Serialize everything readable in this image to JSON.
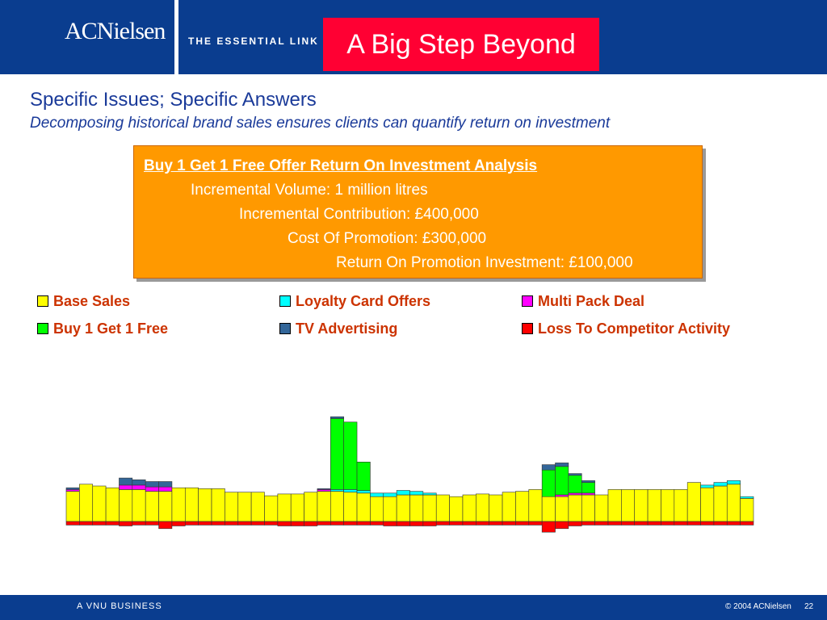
{
  "header": {
    "logo": "ACNielsen",
    "tagline": "THE ESSENTIAL LINK",
    "badge": "A Big Step Beyond"
  },
  "title": "Specific Issues; Specific Answers",
  "subtitle": "Decomposing historical brand sales ensures clients can quantify return on investment",
  "box": {
    "heading": "Buy 1 Get 1 Free Offer Return On Investment Analysis",
    "lines": [
      "Incremental Volume: 1 million litres",
      "Incremental Contribution: £400,000",
      "Cost Of Promotion: £300,000",
      "Return On Promotion Investment: £100,000"
    ]
  },
  "chart_data": {
    "type": "stacked_bar",
    "ylim": [
      -20,
      160
    ],
    "series": [
      {
        "name": "Base Sales",
        "color": "#ffff00",
        "values": [
          34,
          42,
          40,
          38,
          36,
          36,
          34,
          34,
          38,
          38,
          37,
          37,
          33,
          33,
          33,
          29,
          31,
          31,
          33,
          34,
          34,
          33,
          32,
          28,
          28,
          30,
          30,
          30,
          30,
          28,
          30,
          31,
          30,
          33,
          34,
          36,
          28,
          28,
          30,
          30,
          30,
          36,
          36,
          36,
          36,
          36,
          36,
          44,
          38,
          40,
          42,
          26
        ]
      },
      {
        "name": "Loyalty Card Offers",
        "color": "#00ffff",
        "values": [
          0,
          0,
          0,
          0,
          0,
          0,
          0,
          0,
          0,
          0,
          0,
          0,
          0,
          0,
          0,
          0,
          0,
          0,
          0,
          0,
          2,
          3,
          3,
          4,
          4,
          5,
          4,
          2,
          0,
          0,
          0,
          0,
          0,
          0,
          0,
          0,
          0,
          0,
          0,
          0,
          0,
          0,
          0,
          0,
          0,
          0,
          0,
          0,
          3,
          4,
          4,
          2
        ]
      },
      {
        "name": "Multi Pack Deal",
        "color": "#ff00ff",
        "values": [
          2,
          0,
          0,
          0,
          5,
          5,
          5,
          5,
          0,
          0,
          0,
          0,
          0,
          0,
          0,
          0,
          0,
          0,
          0,
          2,
          0,
          0,
          0,
          0,
          0,
          0,
          0,
          0,
          0,
          0,
          0,
          0,
          0,
          0,
          0,
          0,
          0,
          2,
          2,
          2,
          0,
          0,
          0,
          0,
          0,
          0,
          0,
          0,
          0,
          0,
          0,
          0
        ]
      },
      {
        "name": "Buy 1 Get 1 Free",
        "color": "#00ff00",
        "values": [
          0,
          0,
          0,
          0,
          0,
          0,
          0,
          0,
          0,
          0,
          0,
          0,
          0,
          0,
          0,
          0,
          0,
          0,
          0,
          0,
          80,
          76,
          32,
          0,
          0,
          0,
          0,
          0,
          0,
          0,
          0,
          0,
          0,
          0,
          0,
          0,
          30,
          32,
          20,
          12,
          0,
          0,
          0,
          0,
          0,
          0,
          0,
          0,
          0,
          0,
          0,
          0
        ]
      },
      {
        "name": "TV Advertising",
        "color": "#336699",
        "values": [
          2,
          0,
          0,
          0,
          8,
          6,
          6,
          6,
          0,
          0,
          0,
          0,
          0,
          0,
          0,
          0,
          0,
          0,
          0,
          1,
          2,
          0,
          0,
          0,
          0,
          0,
          0,
          0,
          0,
          0,
          0,
          0,
          0,
          0,
          0,
          0,
          6,
          4,
          2,
          2,
          0,
          0,
          0,
          0,
          0,
          0,
          0,
          0,
          0,
          0,
          0,
          0
        ]
      },
      {
        "name": "Loss To Competitor Activity",
        "color": "#ff0000",
        "values": [
          -4,
          -4,
          -4,
          -4,
          -5,
          -4,
          -4,
          -8,
          -5,
          -4,
          -4,
          -4,
          -4,
          -4,
          -4,
          -4,
          -5,
          -5,
          -5,
          -4,
          -4,
          -4,
          -4,
          -4,
          -5,
          -5,
          -5,
          -5,
          -4,
          -4,
          -4,
          -4,
          -4,
          -4,
          -4,
          -4,
          -12,
          -8,
          -5,
          -4,
          -4,
          -4,
          -4,
          -4,
          -4,
          -4,
          -4,
          -4,
          -4,
          -4,
          -4,
          -4
        ]
      }
    ]
  },
  "footer": {
    "left": "A VNU BUSINESS",
    "copyright": "© 2004 ACNielsen",
    "page": "22"
  }
}
